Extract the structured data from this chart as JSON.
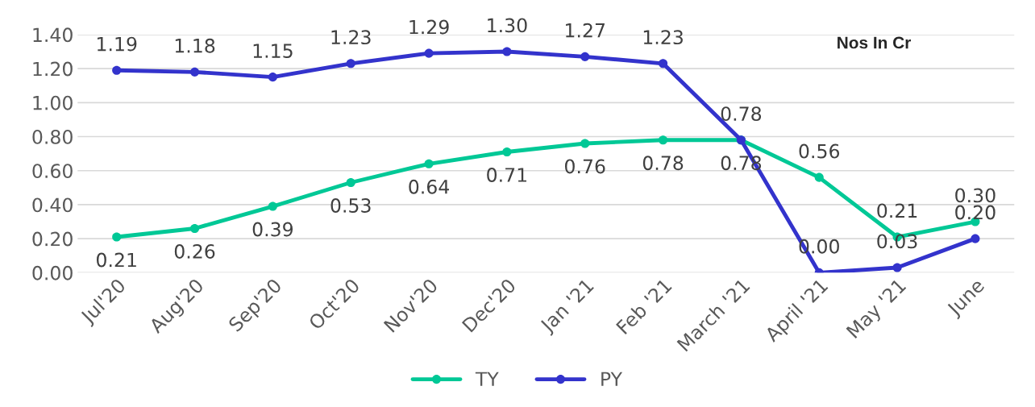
{
  "chart_data": {
    "type": "line",
    "categories": [
      "Jul'20",
      "Aug'20",
      "Sep'20",
      "Oct'20",
      "Nov'20",
      "Dec'20",
      "Jan '21",
      "Feb '21",
      "March '21",
      "April '21",
      "May '21",
      "June"
    ],
    "series": [
      {
        "name": "TY",
        "color": "#00c896",
        "values": [
          0.21,
          0.26,
          0.39,
          0.53,
          0.64,
          0.71,
          0.76,
          0.78,
          0.78,
          0.56,
          0.21,
          0.3
        ],
        "value_labels": [
          "0.21",
          "0.26",
          "0.39",
          "0.53",
          "0.64",
          "0.71",
          "0.76",
          "0.78",
          "0.78",
          "0.56",
          "0.21",
          "0.30"
        ]
      },
      {
        "name": "PY",
        "color": "#3333cc",
        "values": [
          1.19,
          1.18,
          1.15,
          1.23,
          1.29,
          1.3,
          1.27,
          1.23,
          0.78,
          0.0,
          0.03,
          0.2
        ],
        "value_labels": [
          "1.19",
          "1.18",
          "1.15",
          "1.23",
          "1.29",
          "1.30",
          "1.27",
          "1.23",
          "0.78",
          "0.00",
          "0.03",
          "0.20"
        ]
      }
    ],
    "ylim": [
      0,
      1.4
    ],
    "yticks": [
      {
        "value": 0,
        "label": "0.00"
      },
      {
        "value": 0.2,
        "label": "0.20"
      },
      {
        "value": 0.4,
        "label": "0.40"
      },
      {
        "value": 0.6,
        "label": "0.60"
      },
      {
        "value": 0.8,
        "label": "0.80"
      },
      {
        "value": 1.0,
        "label": "1.00"
      },
      {
        "value": 1.2,
        "label": "1.20"
      },
      {
        "value": 1.4,
        "label": "1.40"
      }
    ],
    "grid": "y",
    "legend": "bottom",
    "marker": "circle",
    "line_style": "solid",
    "annotations": [
      "Nos In Cr"
    ]
  }
}
